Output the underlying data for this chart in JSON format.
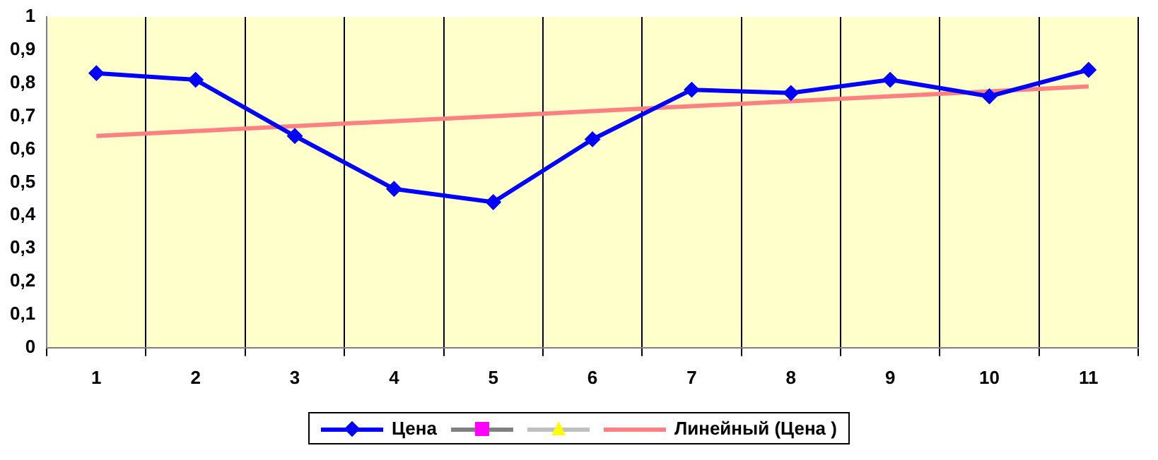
{
  "chart_data": {
    "type": "line",
    "categories": [
      "1",
      "2",
      "3",
      "4",
      "5",
      "6",
      "7",
      "8",
      "9",
      "10",
      "11"
    ],
    "series": [
      {
        "name": "Цена",
        "color": "#0000ff",
        "marker": "diamond",
        "values": [
          0.83,
          0.81,
          0.64,
          0.48,
          0.44,
          0.63,
          0.78,
          0.77,
          0.81,
          0.76,
          0.84
        ]
      },
      {
        "name": "Линейный (Цена )",
        "color": "#ff8080",
        "marker": "none",
        "values": [
          0.64,
          0.655,
          0.67,
          0.685,
          0.7,
          0.715,
          0.73,
          0.745,
          0.76,
          0.775,
          0.79
        ]
      }
    ],
    "ylim": [
      0,
      1
    ],
    "yticks": [
      0,
      {
        "value": 0.1,
        "label": "0,1"
      },
      {
        "value": 0.2,
        "label": "0,2"
      },
      {
        "value": 0.3,
        "label": "0,3"
      },
      {
        "value": 0.4,
        "label": "0,4"
      },
      {
        "value": 0.5,
        "label": "0,5"
      },
      {
        "value": 0.6,
        "label": "0,6"
      },
      {
        "value": 0.7,
        "label": "0,7"
      },
      {
        "value": 0.8,
        "label": "0,8"
      },
      {
        "value": 0.9,
        "label": "0,9"
      },
      1
    ],
    "grid": "x",
    "legend": "bottom"
  }
}
